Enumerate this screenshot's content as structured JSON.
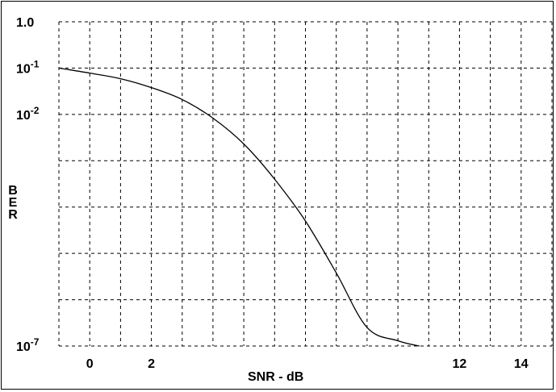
{
  "chart_data": {
    "type": "line",
    "title": "",
    "xlabel": "SNR - dB",
    "ylabel": "BER",
    "x_scale": "linear",
    "y_scale": "log",
    "xlim": [
      -1,
      15
    ],
    "ylim": [
      1e-07,
      1
    ],
    "x_ticks": [
      0,
      2,
      12,
      14
    ],
    "y_ticks": [
      {
        "value": 1,
        "label": "1.0",
        "base": "1.0",
        "exp": ""
      },
      {
        "value": 0.1,
        "label": "10^-1",
        "base": "10",
        "exp": "-1"
      },
      {
        "value": 0.01,
        "label": "10^-2",
        "base": "10",
        "exp": "-2"
      },
      {
        "value": 1e-07,
        "label": "10^-7",
        "base": "10",
        "exp": "-7"
      }
    ],
    "grid": true,
    "grid_style": "dashed",
    "series": [
      {
        "x": [
          -1,
          0,
          1,
          2,
          3,
          4,
          5,
          6,
          7,
          8,
          9,
          10,
          10.7
        ],
        "y": [
          0.1,
          0.078,
          0.059,
          0.038,
          0.021,
          0.0083,
          0.0023,
          0.0004,
          5e-05,
          3.8e-06,
          2.5e-07,
          1.3e-07,
          1e-07
        ]
      }
    ]
  },
  "colors": {
    "line": "#000000",
    "grid": "#000000",
    "background": "#ffffff"
  }
}
